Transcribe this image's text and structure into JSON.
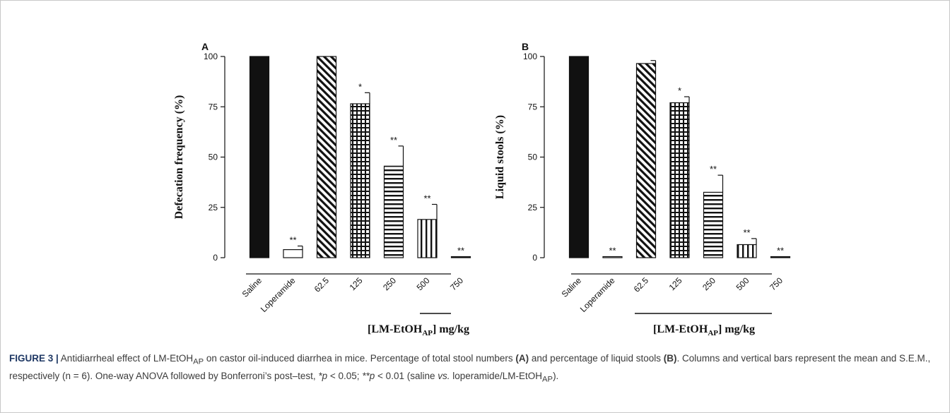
{
  "chart_data": [
    {
      "type": "bar",
      "panel": "A",
      "ylabel": "Defecation frequency (%)",
      "xlabel": "[LM-EtOH_AP] mg/kg",
      "categories": [
        "Saline",
        "Loperamide",
        "62.5",
        "125",
        "250",
        "500",
        "750"
      ],
      "values": [
        100,
        4,
        100,
        76.5,
        45.5,
        19,
        0.5
      ],
      "errors": [
        0,
        1.8,
        0,
        5.5,
        10,
        7.5,
        0
      ],
      "significance": [
        "",
        "**",
        "",
        "*",
        "**",
        "**",
        "**"
      ],
      "ylim": [
        0,
        100
      ],
      "yticks": [
        "0",
        "25",
        "50",
        "75",
        "100"
      ],
      "bar_patterns": [
        "solid",
        "white",
        "diagonal",
        "grid",
        "horizontal",
        "vertical",
        "solid"
      ]
    },
    {
      "type": "bar",
      "panel": "B",
      "ylabel": "Liquid stools (%)",
      "xlabel": "[LM-EtOH_AP] mg/kg",
      "categories": [
        "Saline",
        "Loperamide",
        "62.5",
        "125",
        "250",
        "500",
        "750"
      ],
      "values": [
        100,
        0.5,
        96.5,
        77,
        32.5,
        6.5,
        0.5
      ],
      "errors": [
        0,
        0,
        1.5,
        3,
        8.5,
        3,
        0
      ],
      "significance": [
        "",
        "**",
        "",
        "*",
        "**",
        "**",
        "**"
      ],
      "ylim": [
        0,
        100
      ],
      "yticks": [
        "0",
        "25",
        "50",
        "75",
        "100"
      ],
      "bar_patterns": [
        "solid",
        "white",
        "diagonal",
        "grid",
        "horizontal",
        "vertical",
        "solid"
      ]
    }
  ],
  "caption": {
    "label": "FIGURE 3 |",
    "t1": " Antidiarrheal effect of LM-EtOH",
    "sub1": "AP",
    "t2": " on castor oil-induced diarrhea in mice. Percentage of total stool numbers ",
    "b1": "(A)",
    "t3": " and percentage of liquid stools ",
    "b2": "(B)",
    "t4": ". Columns and vertical bars represent the mean and S.E.M., respectively (n = 6). One-way ANOVA followed by Bonferroni’s post–test, ",
    "i1": "*p",
    "t5": " < 0.05; ",
    "i2": "**p",
    "t6": " < 0.01 (saline ",
    "i3": "vs.",
    "t7": " loperamide/LM-EtOH",
    "sub2": "AP",
    "t8": ")."
  }
}
